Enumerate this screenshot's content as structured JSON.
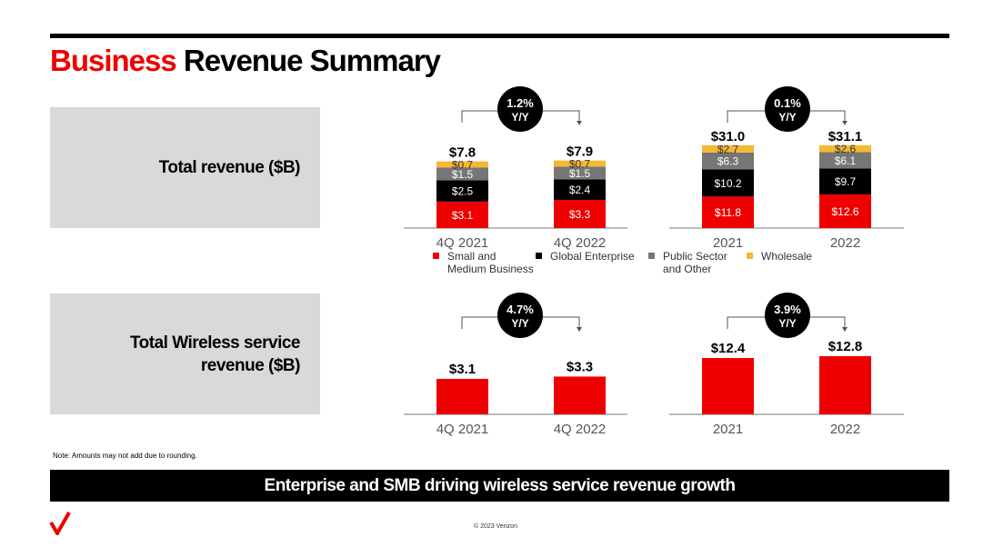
{
  "title": {
    "red": "Business",
    "black": "Revenue Summary"
  },
  "panels": {
    "total_revenue": "Total revenue ($B)",
    "wireless_line1": "Total Wireless service",
    "wireless_line2": "revenue ($B)"
  },
  "note": "Note: Amounts may not add due to rounding.",
  "banner": "Enterprise and SMB driving wireless service revenue growth",
  "copyright": "© 2023 Verizon",
  "colors": {
    "brand_red": "#ee0000",
    "black": "#000000",
    "gray": "#767676",
    "wholesale": "#f7b731"
  },
  "chart_data": [
    {
      "type": "bar",
      "stacked": true,
      "categories": [
        "4Q 2021",
        "4Q 2022"
      ],
      "totals": [
        "$7.8",
        "$7.9"
      ],
      "growth": "1.2%",
      "growth_unit": "Y/Y",
      "series": [
        {
          "name": "Small and Medium Business",
          "values": [
            3.1,
            3.3
          ],
          "labels": [
            "$3.1",
            "$3.3"
          ]
        },
        {
          "name": "Global Enterprise",
          "values": [
            2.5,
            2.4
          ],
          "labels": [
            "$2.5",
            "$2.4"
          ]
        },
        {
          "name": "Public Sector and Other",
          "values": [
            1.5,
            1.5
          ],
          "labels": [
            "$1.5",
            "$1.5"
          ]
        },
        {
          "name": "Wholesale",
          "values": [
            0.7,
            0.7
          ],
          "labels": [
            "$0.7",
            "$0.7"
          ]
        }
      ]
    },
    {
      "type": "bar",
      "stacked": true,
      "categories": [
        "2021",
        "2022"
      ],
      "totals": [
        "$31.0",
        "$31.1"
      ],
      "growth": "0.1%",
      "growth_unit": "Y/Y",
      "series": [
        {
          "name": "Small and Medium Business",
          "values": [
            11.8,
            12.6
          ],
          "labels": [
            "$11.8",
            "$12.6"
          ]
        },
        {
          "name": "Global Enterprise",
          "values": [
            10.2,
            9.7
          ],
          "labels": [
            "$10.2",
            "$9.7"
          ]
        },
        {
          "name": "Public Sector and Other",
          "values": [
            6.3,
            6.1
          ],
          "labels": [
            "$6.3",
            "$6.1"
          ]
        },
        {
          "name": "Wholesale",
          "values": [
            2.7,
            2.6
          ],
          "labels": [
            "$2.7",
            "$2.6"
          ]
        }
      ]
    },
    {
      "type": "bar",
      "categories": [
        "4Q 2021",
        "4Q 2022"
      ],
      "values": [
        3.1,
        3.3
      ],
      "labels": [
        "$3.1",
        "$3.3"
      ],
      "growth": "4.7%",
      "growth_unit": "Y/Y"
    },
    {
      "type": "bar",
      "categories": [
        "2021",
        "2022"
      ],
      "values": [
        12.4,
        12.8
      ],
      "labels": [
        "$12.4",
        "$12.8"
      ],
      "growth": "3.9%",
      "growth_unit": "Y/Y"
    }
  ],
  "legend": [
    {
      "line1": "Small and",
      "line2": "Medium Business"
    },
    {
      "line1": "Global Enterprise",
      "line2": ""
    },
    {
      "line1": "Public Sector",
      "line2": "and Other"
    },
    {
      "line1": "Wholesale",
      "line2": ""
    }
  ]
}
